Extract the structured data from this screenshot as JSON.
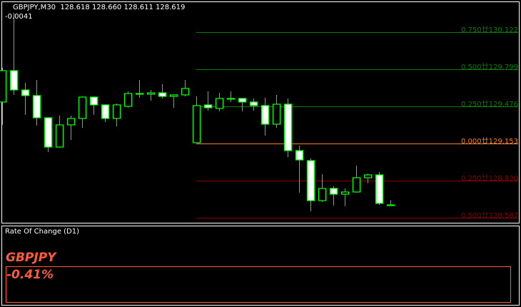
{
  "header": {
    "symbol_timeframe": "GBPJPY,M30",
    "ohlc": "128.618 128.660 128.611 128.619",
    "indicator_value": "-0.0041"
  },
  "colors": {
    "bull": "#00ff00",
    "bear_fill": "#ffffff",
    "fib_up": "#008000",
    "fib_zero": "#ff7f27",
    "fib_down": "#8b0000",
    "roc": "#ff5a3c"
  },
  "fib_levels": [
    {
      "label": "0.750廿130.122",
      "price": 130.122,
      "color": "#008000"
    },
    {
      "label": "0.500廿129.799",
      "price": 129.799,
      "color": "#008000"
    },
    {
      "label": "0.250廿129.476",
      "price": 129.476,
      "color": "#008000"
    },
    {
      "label": "0.000廿129.153",
      "price": 129.153,
      "color": "#ff7f27"
    },
    {
      "label": "0.250廿128.830",
      "price": 128.83,
      "color": "#8b0000"
    },
    {
      "label": "0.500廿128.507",
      "price": 128.507,
      "color": "#8b0000"
    }
  ],
  "chart_data": {
    "type": "candlestick",
    "symbol": "GBPJPY",
    "timeframe": "M30",
    "candles_ohlc": [
      [
        129.514,
        129.812,
        129.315,
        129.787
      ],
      [
        129.787,
        130.29,
        129.576,
        129.619
      ],
      [
        129.619,
        129.681,
        129.402,
        129.57
      ],
      [
        129.57,
        129.706,
        129.309,
        129.377
      ],
      [
        129.377,
        129.383,
        129.079,
        129.122
      ],
      [
        129.122,
        129.396,
        129.116,
        129.315
      ],
      [
        129.315,
        129.396,
        129.184,
        129.371
      ],
      [
        129.371,
        129.563,
        129.29,
        129.557
      ],
      [
        129.557,
        129.563,
        129.402,
        129.489
      ],
      [
        129.489,
        129.495,
        129.34,
        129.371
      ],
      [
        129.371,
        129.501,
        129.302,
        129.489
      ],
      [
        129.476,
        129.607,
        129.464,
        129.588
      ],
      [
        129.588,
        129.706,
        129.551,
        129.582
      ],
      [
        129.582,
        129.619,
        129.526,
        129.594
      ],
      [
        129.594,
        129.669,
        129.545,
        129.563
      ],
      [
        129.563,
        129.582,
        129.464,
        129.576
      ],
      [
        129.576,
        129.706,
        129.563,
        129.632
      ],
      [
        129.16,
        129.563,
        129.16,
        129.483
      ],
      [
        129.489,
        129.607,
        129.439,
        129.464
      ],
      [
        129.458,
        129.594,
        129.433,
        129.545
      ],
      [
        129.545,
        129.607,
        129.514,
        129.545
      ],
      [
        129.545,
        129.545,
        129.433,
        129.514
      ],
      [
        129.514,
        129.545,
        129.439,
        129.483
      ],
      [
        129.483,
        129.551,
        129.222,
        129.321
      ],
      [
        129.321,
        129.576,
        129.29,
        129.495
      ],
      [
        129.495,
        129.545,
        129.035,
        129.091
      ],
      [
        129.091,
        129.135,
        128.725,
        129.01
      ],
      [
        129.004,
        129.023,
        128.563,
        128.656
      ],
      [
        128.656,
        128.886,
        128.644,
        128.762
      ],
      [
        128.762,
        128.781,
        128.613,
        128.712
      ],
      [
        128.712,
        128.762,
        128.607,
        128.731
      ],
      [
        128.731,
        128.961,
        128.725,
        128.855
      ],
      [
        128.855,
        128.892,
        128.806,
        128.88
      ],
      [
        128.88,
        128.905,
        128.619,
        128.632
      ],
      [
        128.618,
        128.66,
        128.611,
        128.619
      ]
    ]
  },
  "indicator": {
    "title": "Rate Of Change (D1)",
    "symbol": "GBPJPY",
    "value": "-0.41%"
  }
}
